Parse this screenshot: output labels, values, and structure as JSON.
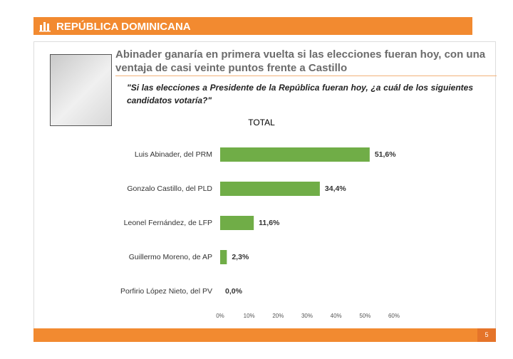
{
  "slide": {
    "header": "REPÚBLICA DOMINICANA",
    "headline": "Abinader ganaría en primera vuelta si las elecciones fueran hoy, con una ventaja de casi veinte puntos frente a Castillo",
    "question": "\"Si las elecciones a Presidente de la República fueran hoy, ¿a cuál de los siguientes candidatos votaría?\"",
    "page_number": "5"
  },
  "chart_data": {
    "type": "bar",
    "orientation": "horizontal",
    "title": "TOTAL",
    "categories": [
      "Luis Abinader, del PRM",
      "Gonzalo Castillo, del PLD",
      "Leonel Fernández, de LFP",
      "Guillermo Moreno, de AP",
      "Porfirio López Nieto, del PV"
    ],
    "values": [
      51.6,
      34.4,
      11.6,
      2.3,
      0.0
    ],
    "value_labels": [
      "51,6%",
      "34,4%",
      "11,6%",
      "2,3%",
      "0,0%"
    ],
    "color": "#70ad47",
    "xlim": [
      0,
      60
    ],
    "xticks": [
      {
        "value": 0,
        "label": "0%"
      },
      {
        "value": 10,
        "label": "10%"
      },
      {
        "value": 20,
        "label": "20%"
      },
      {
        "value": 30,
        "label": "30%"
      },
      {
        "value": 40,
        "label": "40%"
      },
      {
        "value": 50,
        "label": "50%"
      },
      {
        "value": 60,
        "label": "60%"
      }
    ],
    "grid": false
  }
}
